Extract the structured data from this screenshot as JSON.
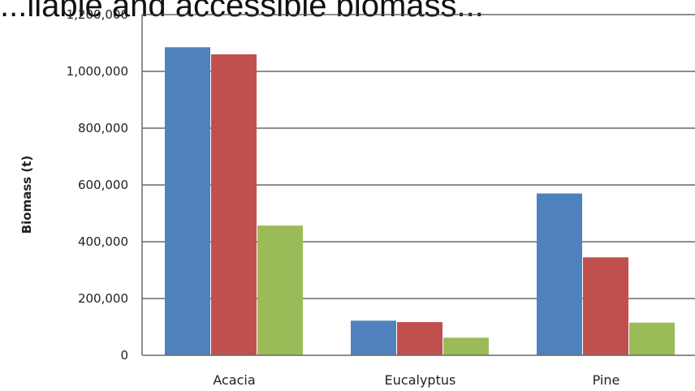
{
  "chart_data": {
    "type": "bar",
    "title": "...ilable and accessible biomass...",
    "ylabel": "Biomass (t)",
    "xlabel": "",
    "categories": [
      "Acacia",
      "Eucalyptus",
      "Pine"
    ],
    "series": [
      {
        "values": [
          1085000,
          122000,
          570000
        ],
        "color": "#4f81bd"
      },
      {
        "values": [
          1060000,
          117000,
          345000
        ],
        "color": "#c0504d"
      },
      {
        "values": [
          457000,
          62000,
          115000
        ],
        "color": "#9bbb59"
      }
    ],
    "ylim": [
      0,
      1200000
    ],
    "yticks": [
      "0",
      "200,000",
      "400,000",
      "600,000",
      "800,000",
      "1,000,000",
      "1,200,000"
    ],
    "grid": true,
    "legend": "none"
  }
}
